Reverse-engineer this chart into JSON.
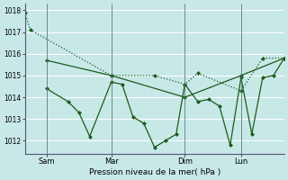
{
  "background_color": "#c8e8e8",
  "grid_color": "#b0d0d0",
  "line_color": "#1a5c1a",
  "marker_color": "#1a5c1a",
  "xlabel": "Pression niveau de la mer( hPa )",
  "ylim": [
    1011.4,
    1018.3
  ],
  "yticks": [
    1012,
    1013,
    1014,
    1015,
    1016,
    1017,
    1018
  ],
  "xlim": [
    0,
    24
  ],
  "day_ticks": [
    2,
    8,
    14.8,
    20
  ],
  "day_labels": [
    "Sam",
    "Mar",
    "Dim",
    "Lun"
  ],
  "vline_positions": [
    0.5,
    2,
    8,
    14.8,
    20,
    23.5
  ],
  "series1_x": [
    0,
    0.5,
    8,
    12,
    14.8,
    16,
    20,
    22,
    24
  ],
  "series1_y": [
    1017.9,
    1017.1,
    1015.0,
    1015.0,
    1014.6,
    1015.1,
    1014.3,
    1015.8,
    1015.8
  ],
  "series2_x": [
    2,
    4,
    5,
    6,
    8,
    9,
    10,
    11,
    12,
    13,
    14,
    14.8,
    16,
    17,
    18,
    19,
    20,
    21,
    22,
    23,
    24
  ],
  "series2_y": [
    1014.4,
    1013.8,
    1013.3,
    1012.2,
    1014.7,
    1014.6,
    1013.1,
    1012.8,
    1011.7,
    1012.0,
    1012.3,
    1014.6,
    1013.8,
    1013.9,
    1013.6,
    1011.8,
    1014.9,
    1012.3,
    1014.9,
    1015.0,
    1015.8
  ],
  "series3_x": [
    2,
    8,
    14.8,
    20,
    24
  ],
  "series3_y": [
    1015.7,
    1015.0,
    1014.0,
    1015.0,
    1015.8
  ]
}
